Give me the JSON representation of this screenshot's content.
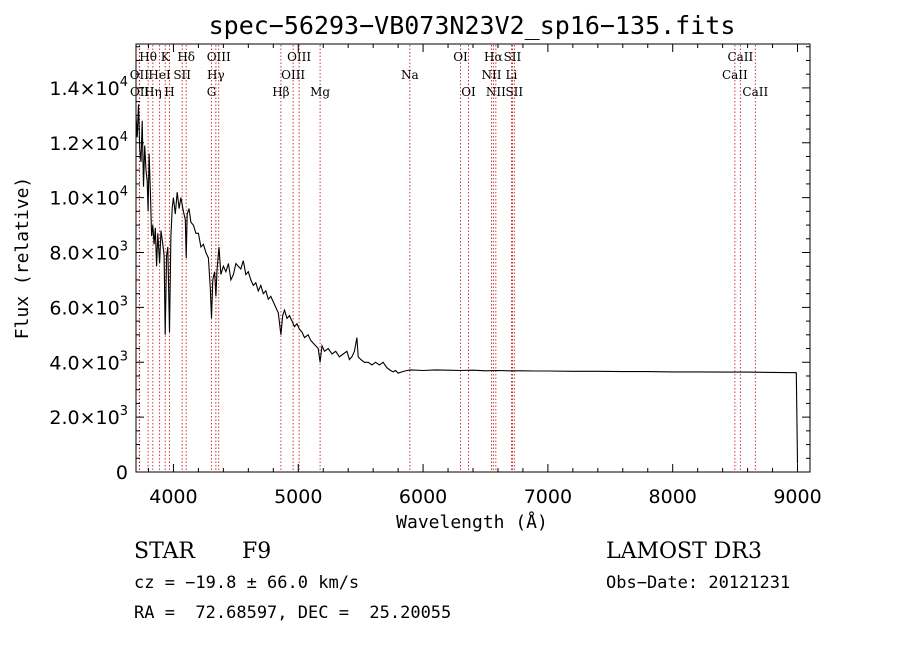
{
  "chart_data": {
    "type": "line",
    "title": "spec−56293−VB073N23V2_sp16−135.fits",
    "xlabel": "Wavelength (Å)",
    "ylabel": "Flux (relative)",
    "xlim": [
      3700,
      9100
    ],
    "ylim": [
      0,
      15600
    ],
    "x_ticks": [
      {
        "value": 4000,
        "label": "4000"
      },
      {
        "value": 5000,
        "label": "5000"
      },
      {
        "value": 6000,
        "label": "6000"
      },
      {
        "value": 7000,
        "label": "7000"
      },
      {
        "value": 8000,
        "label": "8000"
      },
      {
        "value": 9000,
        "label": "9000"
      }
    ],
    "y_ticks": [
      {
        "value": 0,
        "mantissa": "0",
        "exp": ""
      },
      {
        "value": 2000,
        "mantissa": "2.0×10",
        "exp": "3"
      },
      {
        "value": 4000,
        "mantissa": "4.0×10",
        "exp": "3"
      },
      {
        "value": 6000,
        "mantissa": "6.0×10",
        "exp": "3"
      },
      {
        "value": 8000,
        "mantissa": "8.0×10",
        "exp": "3"
      },
      {
        "value": 10000,
        "mantissa": "1.0×10",
        "exp": "4"
      },
      {
        "value": 12000,
        "mantissa": "1.2×10",
        "exp": "4"
      },
      {
        "value": 14000,
        "mantissa": "1.4×10",
        "exp": "4"
      }
    ],
    "line_markers": [
      {
        "label": "Hθ",
        "x": 3797,
        "row": 0
      },
      {
        "label": "OII",
        "x": 3727,
        "row": 1
      },
      {
        "label": "Hη",
        "x": 3835,
        "row": 2
      },
      {
        "label": "OII",
        "x": 3729,
        "row": 2
      },
      {
        "label": "HeI",
        "x": 3889,
        "row": 1
      },
      {
        "label": "K",
        "x": 3934,
        "row": 0
      },
      {
        "label": "H",
        "x": 3968,
        "row": 2
      },
      {
        "label": "SII",
        "x": 4070,
        "row": 1
      },
      {
        "label": "Hδ",
        "x": 4102,
        "row": 0
      },
      {
        "label": "OIII",
        "x": 4363,
        "row": 0
      },
      {
        "label": "Hγ",
        "x": 4340,
        "row": 1
      },
      {
        "label": "G",
        "x": 4305,
        "row": 2
      },
      {
        "label": "Hβ",
        "x": 4861,
        "row": 2
      },
      {
        "label": "OIII",
        "x": 5007,
        "row": 0
      },
      {
        "label": "OIII",
        "x": 4959,
        "row": 1
      },
      {
        "label": "Mg",
        "x": 5175,
        "row": 2
      },
      {
        "label": "Na",
        "x": 5894,
        "row": 1
      },
      {
        "label": "OI",
        "x": 6300,
        "row": 0
      },
      {
        "label": "OI",
        "x": 6364,
        "row": 2
      },
      {
        "label": "Hα",
        "x": 6563,
        "row": 0
      },
      {
        "label": "NII",
        "x": 6548,
        "row": 1
      },
      {
        "label": "NII",
        "x": 6583,
        "row": 2
      },
      {
        "label": "SII",
        "x": 6716,
        "row": 0
      },
      {
        "label": "Li",
        "x": 6708,
        "row": 1
      },
      {
        "label": "SII",
        "x": 6731,
        "row": 2
      },
      {
        "label": "CaII",
        "x": 8542,
        "row": 0
      },
      {
        "label": "CaII",
        "x": 8498,
        "row": 1
      },
      {
        "label": "CaII",
        "x": 8662,
        "row": 2
      }
    ],
    "series": [
      {
        "name": "flux",
        "points": [
          [
            3700,
            13000
          ],
          [
            3710,
            12200
          ],
          [
            3720,
            13400
          ],
          [
            3730,
            11800
          ],
          [
            3740,
            11300
          ],
          [
            3750,
            12800
          ],
          [
            3760,
            10400
          ],
          [
            3770,
            11900
          ],
          [
            3780,
            11000
          ],
          [
            3790,
            10600
          ],
          [
            3797,
            9500
          ],
          [
            3805,
            11600
          ],
          [
            3815,
            10200
          ],
          [
            3825,
            8600
          ],
          [
            3835,
            9000
          ],
          [
            3845,
            8300
          ],
          [
            3855,
            8900
          ],
          [
            3865,
            7500
          ],
          [
            3875,
            8700
          ],
          [
            3889,
            7600
          ],
          [
            3900,
            8800
          ],
          [
            3915,
            8300
          ],
          [
            3925,
            7900
          ],
          [
            3934,
            5000
          ],
          [
            3945,
            7900
          ],
          [
            3955,
            8200
          ],
          [
            3968,
            5100
          ],
          [
            3980,
            8600
          ],
          [
            3990,
            9600
          ],
          [
            4000,
            10000
          ],
          [
            4015,
            9400
          ],
          [
            4030,
            10200
          ],
          [
            4045,
            9600
          ],
          [
            4060,
            10000
          ],
          [
            4080,
            9500
          ],
          [
            4095,
            9200
          ],
          [
            4102,
            7800
          ],
          [
            4110,
            9400
          ],
          [
            4125,
            9600
          ],
          [
            4140,
            9100
          ],
          [
            4160,
            9000
          ],
          [
            4180,
            8700
          ],
          [
            4200,
            8700
          ],
          [
            4220,
            8200
          ],
          [
            4240,
            8300
          ],
          [
            4260,
            8000
          ],
          [
            4280,
            7800
          ],
          [
            4295,
            6700
          ],
          [
            4305,
            5600
          ],
          [
            4315,
            7000
          ],
          [
            4330,
            7300
          ],
          [
            4340,
            6400
          ],
          [
            4350,
            7400
          ],
          [
            4365,
            8200
          ],
          [
            4380,
            7200
          ],
          [
            4400,
            7500
          ],
          [
            4420,
            7300
          ],
          [
            4440,
            7600
          ],
          [
            4460,
            7000
          ],
          [
            4480,
            7200
          ],
          [
            4500,
            7600
          ],
          [
            4520,
            7500
          ],
          [
            4540,
            7400
          ],
          [
            4560,
            7700
          ],
          [
            4580,
            7200
          ],
          [
            4600,
            7300
          ],
          [
            4620,
            7000
          ],
          [
            4640,
            6800
          ],
          [
            4660,
            6900
          ],
          [
            4680,
            6600
          ],
          [
            4700,
            6800
          ],
          [
            4720,
            6500
          ],
          [
            4740,
            6600
          ],
          [
            4760,
            6300
          ],
          [
            4780,
            6400
          ],
          [
            4800,
            6200
          ],
          [
            4820,
            6000
          ],
          [
            4840,
            5800
          ],
          [
            4861,
            5000
          ],
          [
            4875,
            5700
          ],
          [
            4890,
            5900
          ],
          [
            4910,
            5600
          ],
          [
            4930,
            5700
          ],
          [
            4950,
            5500
          ],
          [
            4970,
            5300
          ],
          [
            4990,
            5400
          ],
          [
            5010,
            5200
          ],
          [
            5030,
            5100
          ],
          [
            5050,
            4900
          ],
          [
            5080,
            5000
          ],
          [
            5100,
            4800
          ],
          [
            5120,
            4700
          ],
          [
            5140,
            4600
          ],
          [
            5160,
            4500
          ],
          [
            5175,
            4000
          ],
          [
            5190,
            4600
          ],
          [
            5210,
            4400
          ],
          [
            5240,
            4500
          ],
          [
            5270,
            4300
          ],
          [
            5300,
            4400
          ],
          [
            5330,
            4200
          ],
          [
            5360,
            4300
          ],
          [
            5390,
            4400
          ],
          [
            5410,
            4100
          ],
          [
            5430,
            4200
          ],
          [
            5450,
            4400
          ],
          [
            5470,
            4900
          ],
          [
            5480,
            4200
          ],
          [
            5500,
            4100
          ],
          [
            5530,
            4000
          ],
          [
            5560,
            4000
          ],
          [
            5590,
            3900
          ],
          [
            5620,
            4000
          ],
          [
            5650,
            3900
          ],
          [
            5680,
            4000
          ],
          [
            5710,
            3800
          ],
          [
            5740,
            3700
          ],
          [
            5760,
            3650
          ],
          [
            5780,
            3700
          ],
          [
            5800,
            3600
          ],
          [
            5830,
            3650
          ],
          [
            5870,
            3700
          ],
          [
            5900,
            3720
          ],
          [
            6000,
            3700
          ],
          [
            6100,
            3720
          ],
          [
            6200,
            3710
          ],
          [
            6300,
            3700
          ],
          [
            6400,
            3710
          ],
          [
            6500,
            3690
          ],
          [
            6600,
            3700
          ],
          [
            6700,
            3690
          ],
          [
            6800,
            3690
          ],
          [
            6900,
            3680
          ],
          [
            7000,
            3680
          ],
          [
            7200,
            3670
          ],
          [
            7400,
            3670
          ],
          [
            7600,
            3660
          ],
          [
            7800,
            3660
          ],
          [
            8000,
            3650
          ],
          [
            8200,
            3650
          ],
          [
            8400,
            3640
          ],
          [
            8600,
            3640
          ],
          [
            8800,
            3630
          ],
          [
            8990,
            3620
          ],
          [
            9000,
            300
          ]
        ]
      }
    ]
  },
  "info": {
    "object_class": "STAR",
    "subclass": "F9",
    "survey": "LAMOST DR3",
    "redshift": "cz = −19.8 ± 66.0 km/s",
    "obs_date": "Obs−Date: 20121231",
    "coordinates": "RA =  72.68597, DEC =  25.20055"
  }
}
